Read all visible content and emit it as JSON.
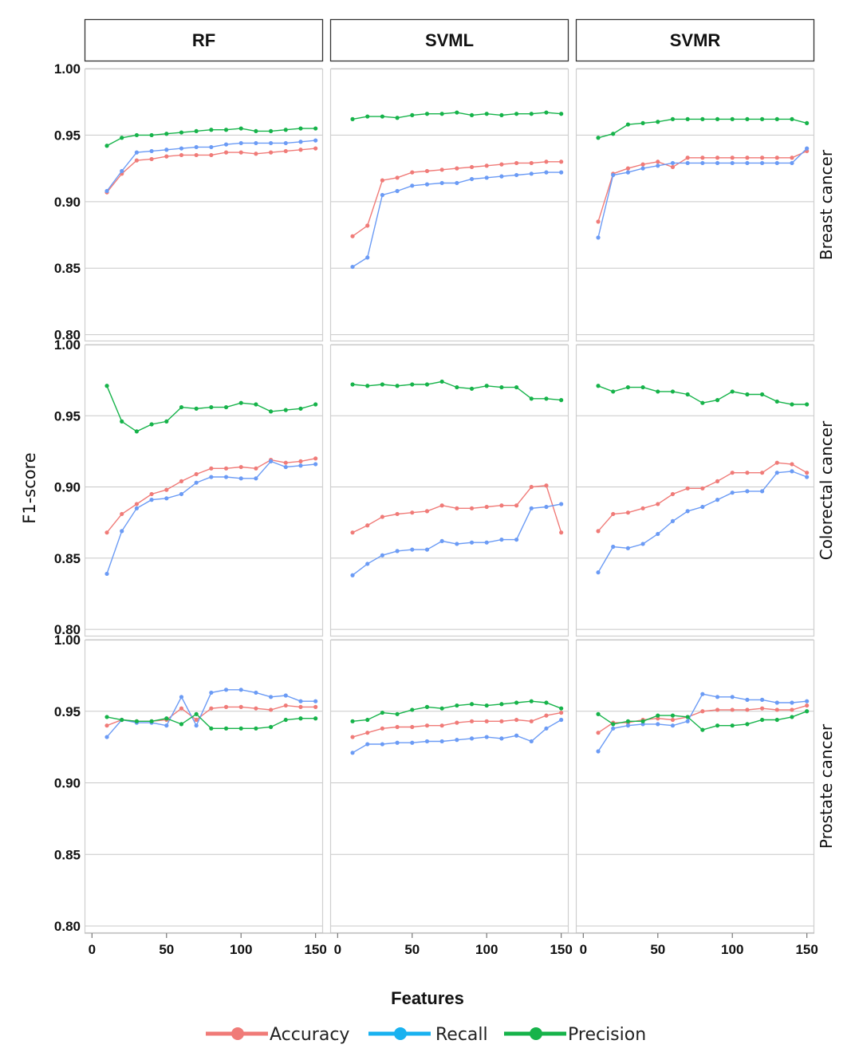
{
  "chart_data": {
    "type": "line",
    "ylabel": "F1-score",
    "xlabel": "Features",
    "models": [
      "RF",
      "SVML",
      "SVMR"
    ],
    "datasets": [
      "Breast cancer",
      "Colorectal cancer",
      "Prostate cancer"
    ],
    "x": [
      10,
      20,
      30,
      40,
      50,
      60,
      70,
      80,
      90,
      100,
      110,
      120,
      130,
      140,
      150
    ],
    "xlim": [
      -5,
      155
    ],
    "xticks": [
      0,
      50,
      100,
      150
    ],
    "xtick_labels": [
      "0",
      "50",
      "100",
      "150"
    ],
    "ylim": [
      0.795,
      1.0
    ],
    "yticks": [
      0.8,
      0.85,
      0.9,
      0.95,
      1.0
    ],
    "ytick_labels": [
      "0.80",
      "0.85",
      "0.90",
      "0.95",
      "1.00"
    ],
    "series_names": [
      "Accuracy",
      "Recall",
      "Precision"
    ],
    "colors": {
      "Accuracy": "#f07b78",
      "Recall": "#6b9bf5",
      "Precision": "#16b34a",
      "legend_Recall": "#19b2f0"
    },
    "legend": {
      "items": [
        "Accuracy",
        "Recall",
        "Precision"
      ],
      "position": "bottom"
    },
    "panels": [
      {
        "model": "RF",
        "dataset": "Breast cancer",
        "Accuracy": [
          0.907,
          0.921,
          0.931,
          0.932,
          0.934,
          0.935,
          0.935,
          0.935,
          0.937,
          0.937,
          0.936,
          0.937,
          0.938,
          0.939,
          0.94
        ],
        "Recall": [
          0.908,
          0.923,
          0.937,
          0.938,
          0.939,
          0.94,
          0.941,
          0.941,
          0.943,
          0.944,
          0.944,
          0.944,
          0.944,
          0.945,
          0.946
        ],
        "Precision": [
          0.942,
          0.948,
          0.95,
          0.95,
          0.951,
          0.952,
          0.953,
          0.954,
          0.954,
          0.955,
          0.953,
          0.953,
          0.954,
          0.955,
          0.955
        ]
      },
      {
        "model": "SVML",
        "dataset": "Breast cancer",
        "Accuracy": [
          0.874,
          0.882,
          0.916,
          0.918,
          0.922,
          0.923,
          0.924,
          0.925,
          0.926,
          0.927,
          0.928,
          0.929,
          0.929,
          0.93,
          0.93
        ],
        "Recall": [
          0.851,
          0.858,
          0.905,
          0.908,
          0.912,
          0.913,
          0.914,
          0.914,
          0.917,
          0.918,
          0.919,
          0.92,
          0.921,
          0.922,
          0.922
        ],
        "Precision": [
          0.962,
          0.964,
          0.964,
          0.963,
          0.965,
          0.966,
          0.966,
          0.967,
          0.965,
          0.966,
          0.965,
          0.966,
          0.966,
          0.967,
          0.966
        ]
      },
      {
        "model": "SVMR",
        "dataset": "Breast cancer",
        "Accuracy": [
          0.885,
          0.921,
          0.925,
          0.928,
          0.93,
          0.926,
          0.933,
          0.933,
          0.933,
          0.933,
          0.933,
          0.933,
          0.933,
          0.933,
          0.938
        ],
        "Recall": [
          0.873,
          0.92,
          0.922,
          0.925,
          0.927,
          0.929,
          0.929,
          0.929,
          0.929,
          0.929,
          0.929,
          0.929,
          0.929,
          0.929,
          0.94
        ],
        "Precision": [
          0.948,
          0.951,
          0.958,
          0.959,
          0.96,
          0.962,
          0.962,
          0.962,
          0.962,
          0.962,
          0.962,
          0.962,
          0.962,
          0.962,
          0.959
        ]
      },
      {
        "model": "RF",
        "dataset": "Colorectal cancer",
        "Accuracy": [
          0.868,
          0.881,
          0.888,
          0.895,
          0.898,
          0.904,
          0.909,
          0.913,
          0.913,
          0.914,
          0.913,
          0.919,
          0.917,
          0.918,
          0.92
        ],
        "Recall": [
          0.839,
          0.869,
          0.885,
          0.891,
          0.892,
          0.895,
          0.903,
          0.907,
          0.907,
          0.906,
          0.906,
          0.918,
          0.914,
          0.915,
          0.916
        ],
        "Precision": [
          0.971,
          0.946,
          0.939,
          0.944,
          0.946,
          0.956,
          0.955,
          0.956,
          0.956,
          0.959,
          0.958,
          0.953,
          0.954,
          0.955,
          0.958
        ]
      },
      {
        "model": "SVML",
        "dataset": "Colorectal cancer",
        "Accuracy": [
          0.868,
          0.873,
          0.879,
          0.881,
          0.882,
          0.883,
          0.887,
          0.885,
          0.885,
          0.886,
          0.887,
          0.887,
          0.9,
          0.901,
          0.868
        ],
        "Recall": [
          0.838,
          0.846,
          0.852,
          0.855,
          0.856,
          0.856,
          0.862,
          0.86,
          0.861,
          0.861,
          0.863,
          0.863,
          0.885,
          0.886,
          0.888
        ],
        "Precision": [
          0.972,
          0.971,
          0.972,
          0.971,
          0.972,
          0.972,
          0.974,
          0.97,
          0.969,
          0.971,
          0.97,
          0.97,
          0.962,
          0.962,
          0.961
        ]
      },
      {
        "model": "SVMR",
        "dataset": "Colorectal cancer",
        "Accuracy": [
          0.869,
          0.881,
          0.882,
          0.885,
          0.888,
          0.895,
          0.899,
          0.899,
          0.904,
          0.91,
          0.91,
          0.91,
          0.917,
          0.916,
          0.91
        ],
        "Recall": [
          0.84,
          0.858,
          0.857,
          0.86,
          0.867,
          0.876,
          0.883,
          0.886,
          0.891,
          0.896,
          0.897,
          0.897,
          0.91,
          0.911,
          0.907
        ],
        "Precision": [
          0.971,
          0.967,
          0.97,
          0.97,
          0.967,
          0.967,
          0.965,
          0.959,
          0.961,
          0.967,
          0.965,
          0.965,
          0.96,
          0.958,
          0.958
        ]
      },
      {
        "model": "RF",
        "dataset": "Prostate cancer",
        "Accuracy": [
          0.94,
          0.944,
          0.943,
          0.943,
          0.944,
          0.952,
          0.944,
          0.952,
          0.953,
          0.953,
          0.952,
          0.951,
          0.954,
          0.953,
          0.953
        ],
        "Recall": [
          0.932,
          0.944,
          0.942,
          0.942,
          0.94,
          0.96,
          0.94,
          0.963,
          0.965,
          0.965,
          0.963,
          0.96,
          0.961,
          0.957,
          0.957
        ],
        "Precision": [
          0.946,
          0.944,
          0.943,
          0.943,
          0.945,
          0.941,
          0.948,
          0.938,
          0.938,
          0.938,
          0.938,
          0.939,
          0.944,
          0.945,
          0.945
        ]
      },
      {
        "model": "SVML",
        "dataset": "Prostate cancer",
        "Accuracy": [
          0.932,
          0.935,
          0.938,
          0.939,
          0.939,
          0.94,
          0.94,
          0.942,
          0.943,
          0.943,
          0.943,
          0.944,
          0.943,
          0.947,
          0.949
        ],
        "Recall": [
          0.921,
          0.927,
          0.927,
          0.928,
          0.928,
          0.929,
          0.929,
          0.93,
          0.931,
          0.932,
          0.931,
          0.933,
          0.929,
          0.938,
          0.944
        ],
        "Precision": [
          0.943,
          0.944,
          0.949,
          0.948,
          0.951,
          0.953,
          0.952,
          0.954,
          0.955,
          0.954,
          0.955,
          0.956,
          0.957,
          0.956,
          0.952
        ]
      },
      {
        "model": "SVMR",
        "dataset": "Prostate cancer",
        "Accuracy": [
          0.935,
          0.942,
          0.942,
          0.944,
          0.945,
          0.944,
          0.946,
          0.95,
          0.951,
          0.951,
          0.951,
          0.952,
          0.951,
          0.951,
          0.954
        ],
        "Recall": [
          0.922,
          0.938,
          0.94,
          0.941,
          0.941,
          0.94,
          0.943,
          0.962,
          0.96,
          0.96,
          0.958,
          0.958,
          0.956,
          0.956,
          0.957
        ],
        "Precision": [
          0.948,
          0.941,
          0.943,
          0.943,
          0.947,
          0.947,
          0.946,
          0.937,
          0.94,
          0.94,
          0.941,
          0.944,
          0.944,
          0.946,
          0.95
        ]
      }
    ]
  }
}
